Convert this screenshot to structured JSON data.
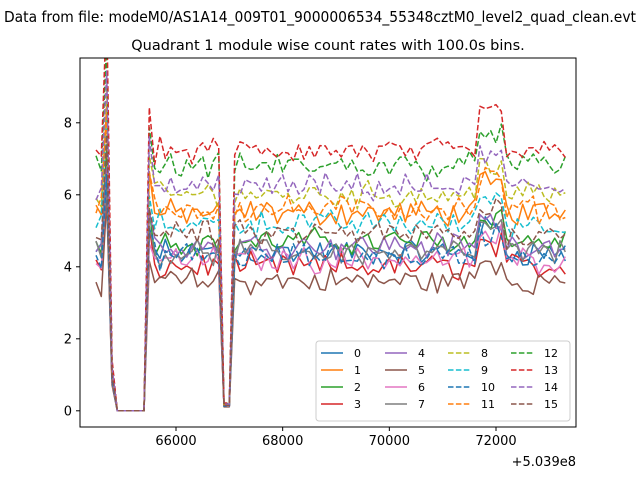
{
  "header": {
    "suptitle": "Data from file: modeM0/AS1A14_009T01_9000006534_55348cztM0_level2_quad_clean.evt",
    "title": "Quadrant 1 module wise count rates with 100.0s bins."
  },
  "chart_data": {
    "type": "line",
    "title": "Quadrant 1 module wise count rates with 100.0s bins.",
    "xlabel": "",
    "ylabel": "",
    "x_offset_label": "+5.039e8",
    "xlim": [
      64200,
      73500
    ],
    "ylim": [
      -0.45,
      9.8
    ],
    "xticks": [
      66000,
      68000,
      70000,
      72000
    ],
    "xtick_labels": [
      "66000",
      "68000",
      "70000",
      "72000"
    ],
    "yticks": [
      0,
      2,
      4,
      6,
      8
    ],
    "ytick_labels": [
      "0",
      "2",
      "4",
      "6",
      "8"
    ],
    "grid": false,
    "legend_position": "lower-right",
    "legend_columns": 4,
    "base_levels": [
      4.4,
      5.5,
      4.7,
      4.0,
      4.6,
      3.6,
      4.2,
      4.4,
      6.0,
      5.2,
      4.3,
      5.6,
      6.8,
      7.2,
      6.2,
      4.9
    ],
    "series": [
      {
        "name": "0",
        "color": "#1f77b4",
        "dash": "solid"
      },
      {
        "name": "1",
        "color": "#ff7f0e",
        "dash": "solid"
      },
      {
        "name": "2",
        "color": "#2ca02c",
        "dash": "solid"
      },
      {
        "name": "3",
        "color": "#d62728",
        "dash": "solid"
      },
      {
        "name": "4",
        "color": "#9467bd",
        "dash": "solid"
      },
      {
        "name": "5",
        "color": "#8c564b",
        "dash": "solid"
      },
      {
        "name": "6",
        "color": "#e377c2",
        "dash": "solid"
      },
      {
        "name": "7",
        "color": "#7f7f7f",
        "dash": "solid"
      },
      {
        "name": "8",
        "color": "#bcbd22",
        "dash": "dashed"
      },
      {
        "name": "9",
        "color": "#17becf",
        "dash": "dashed"
      },
      {
        "name": "10",
        "color": "#1f77b4",
        "dash": "dashed"
      },
      {
        "name": "11",
        "color": "#ff7f0e",
        "dash": "dashed"
      },
      {
        "name": "12",
        "color": "#2ca02c",
        "dash": "dashed"
      },
      {
        "name": "13",
        "color": "#d62728",
        "dash": "dashed"
      },
      {
        "name": "14",
        "color": "#9467bd",
        "dash": "dashed"
      },
      {
        "name": "15",
        "color": "#8c564b",
        "dash": "dashed"
      }
    ]
  }
}
